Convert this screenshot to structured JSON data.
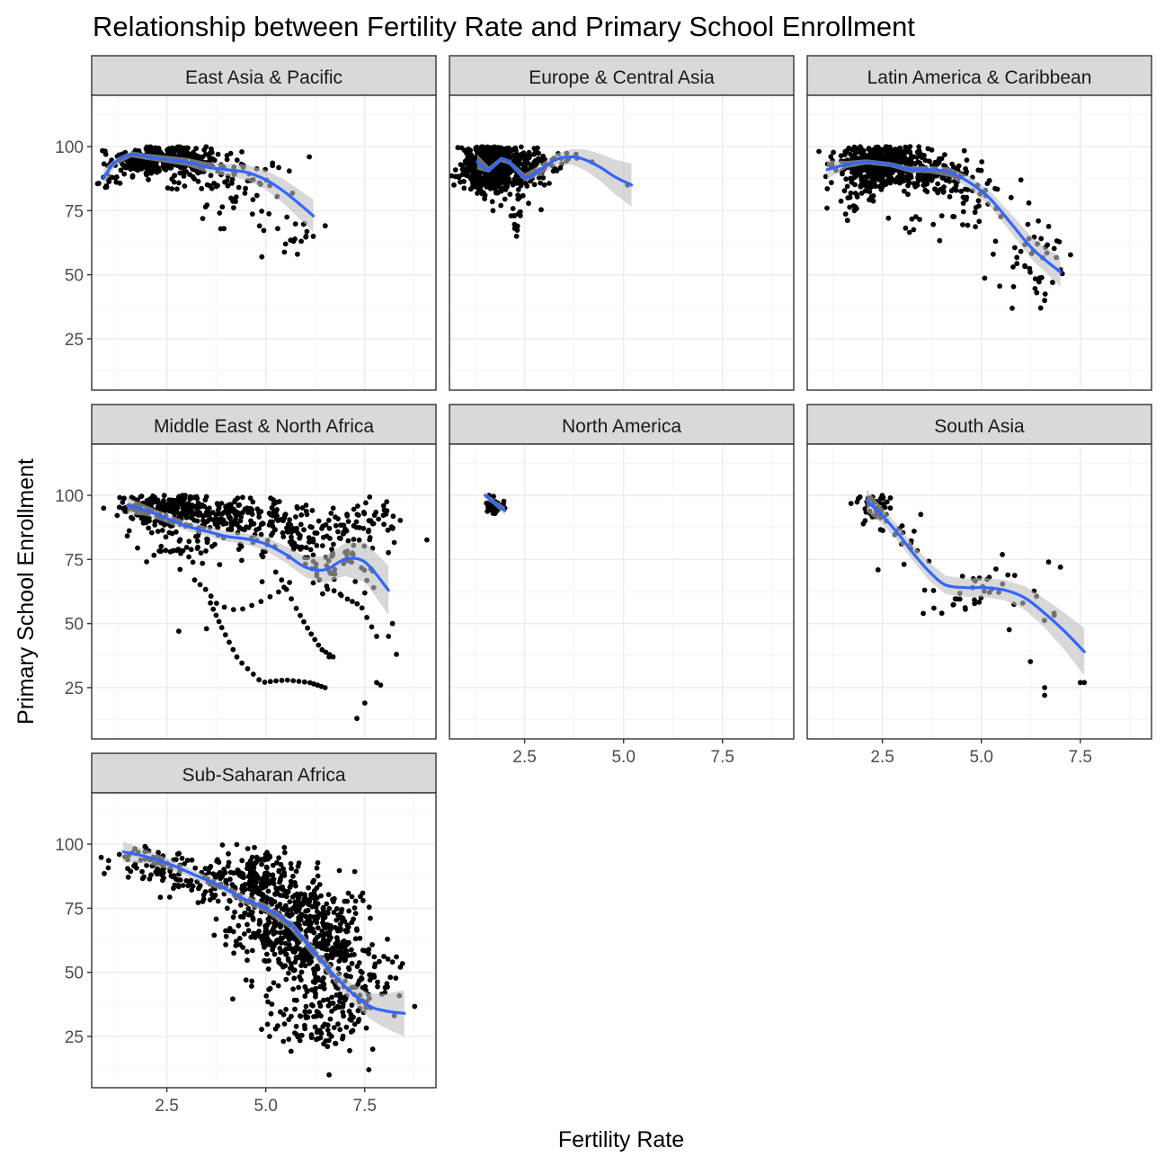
{
  "chart_data": {
    "type": "scatter",
    "title": "Relationship between Fertility Rate and Primary School Enrollment",
    "xlabel": "Fertility Rate",
    "ylabel": "Primary School Enrollment",
    "xlim": [
      0.6,
      9.3
    ],
    "ylim": [
      5,
      120
    ],
    "x_ticks": [
      2.5,
      5.0,
      7.5
    ],
    "y_ticks": [
      25,
      50,
      75,
      100
    ],
    "grid": true,
    "smoother": "loess",
    "colors": {
      "points": "#000000",
      "smooth_line": "#3366FF",
      "ribbon": "#BEBEBE",
      "strip_fill": "#D9D9D9",
      "panel_border": "#333333",
      "grid": "#EBEBEB"
    },
    "panels": [
      {
        "name": "East Asia & Pacific",
        "clusters": [
          {
            "cx": 2.2,
            "cy": 95,
            "sx": 0.55,
            "sy": 3,
            "n": 260,
            "ymax": 100
          },
          {
            "cx": 3.3,
            "cy": 92,
            "sx": 0.7,
            "sy": 4,
            "n": 110,
            "ymax": 100
          },
          {
            "cx": 1.0,
            "cy": 86,
            "sx": 0.15,
            "sy": 2,
            "n": 14,
            "ymax": 100
          },
          {
            "cx": 4.4,
            "cy": 80,
            "sx": 0.6,
            "sy": 8,
            "n": 40,
            "ymax": 100
          },
          {
            "cx": 5.4,
            "cy": 66,
            "sx": 0.45,
            "sy": 4,
            "n": 12,
            "ymax": 100
          }
        ],
        "extra_points": [
          [
            4.9,
            57
          ],
          [
            5.8,
            58
          ],
          [
            6.2,
            65
          ],
          [
            6.1,
            96
          ],
          [
            5.5,
            62
          ],
          [
            5.3,
            68
          ]
        ],
        "smooth": [
          [
            0.9,
            88
          ],
          [
            1.2,
            94
          ],
          [
            1.6,
            97
          ],
          [
            2.0,
            96
          ],
          [
            2.5,
            95
          ],
          [
            3.0,
            94
          ],
          [
            3.5,
            92
          ],
          [
            4.0,
            91
          ],
          [
            4.5,
            90
          ],
          [
            5.0,
            87
          ],
          [
            5.5,
            82
          ],
          [
            6.2,
            73
          ]
        ],
        "ribbon": [
          1.6,
          0.7,
          0.6,
          0.6,
          0.7,
          0.8,
          1.0,
          1.2,
          1.5,
          1.9,
          2.4,
          3.2
        ]
      },
      {
        "name": "Europe & Central Asia",
        "clusters": [
          {
            "cx": 1.6,
            "cy": 92,
            "sx": 0.3,
            "sy": 4.5,
            "n": 620,
            "ymax": 100
          },
          {
            "cx": 2.4,
            "cy": 92,
            "sx": 0.3,
            "sy": 5,
            "n": 140,
            "ymax": 100
          },
          {
            "cx": 2.3,
            "cy": 72,
            "sx": 0.08,
            "sy": 3,
            "n": 14,
            "ymax": 100
          },
          {
            "cx": 3.2,
            "cy": 94,
            "sx": 0.35,
            "sy": 2,
            "n": 30,
            "ymax": 100
          }
        ],
        "extra_points": [
          [
            5.1,
            85
          ],
          [
            3.8,
            97
          ],
          [
            4.2,
            94
          ],
          [
            1.7,
            75
          ],
          [
            1.9,
            77
          ]
        ],
        "smooth": [
          [
            1.3,
            94
          ],
          [
            1.6,
            91
          ],
          [
            1.9,
            95
          ],
          [
            2.1,
            94
          ],
          [
            2.5,
            88
          ],
          [
            2.8,
            90
          ],
          [
            3.3,
            95
          ],
          [
            3.7,
            96
          ],
          [
            4.0,
            95
          ],
          [
            4.4,
            92
          ],
          [
            4.8,
            88
          ],
          [
            5.2,
            85
          ]
        ],
        "ribbon": [
          1.5,
          0.6,
          0.5,
          0.5,
          0.8,
          1.0,
          1.2,
          1.5,
          2.0,
          2.6,
          3.4,
          4.2
        ]
      },
      {
        "name": "Latin America & Caribbean",
        "clusters": [
          {
            "cx": 2.4,
            "cy": 93,
            "sx": 0.5,
            "sy": 4,
            "n": 480,
            "ymax": 100
          },
          {
            "cx": 3.7,
            "cy": 90,
            "sx": 0.55,
            "sy": 4,
            "n": 140,
            "ymax": 100
          },
          {
            "cx": 1.8,
            "cy": 82,
            "sx": 0.3,
            "sy": 4,
            "n": 30,
            "ymax": 100
          },
          {
            "cx": 4.7,
            "cy": 80,
            "sx": 0.5,
            "sy": 7,
            "n": 40,
            "ymax": 100
          },
          {
            "cx": 6.2,
            "cy": 58,
            "sx": 0.4,
            "sy": 7,
            "n": 40,
            "ymax": 100
          },
          {
            "cx": 3.5,
            "cy": 69,
            "sx": 0.35,
            "sy": 2,
            "n": 8,
            "ymax": 100
          }
        ],
        "extra_points": [
          [
            1.1,
            76
          ],
          [
            6.4,
            43
          ],
          [
            6.5,
            37
          ],
          [
            6.6,
            40
          ],
          [
            6.8,
            47
          ],
          [
            7.0,
            52
          ],
          [
            6.2,
            78
          ],
          [
            6.0,
            87
          ],
          [
            5.3,
            58
          ],
          [
            4.0,
            73
          ]
        ],
        "smooth": [
          [
            1.1,
            91
          ],
          [
            1.6,
            93
          ],
          [
            2.1,
            94
          ],
          [
            2.7,
            93
          ],
          [
            3.2,
            91
          ],
          [
            3.7,
            91
          ],
          [
            4.2,
            90
          ],
          [
            4.7,
            86
          ],
          [
            5.2,
            80
          ],
          [
            5.7,
            71
          ],
          [
            6.3,
            60
          ],
          [
            7.0,
            51
          ]
        ],
        "ribbon": [
          1.8,
          0.7,
          0.5,
          0.5,
          0.6,
          0.7,
          0.9,
          1.2,
          1.5,
          1.8,
          2.2,
          2.8
        ]
      },
      {
        "name": "Middle East & North Africa",
        "clusters": [
          {
            "cx": 2.3,
            "cy": 95,
            "sx": 0.5,
            "sy": 3,
            "n": 170,
            "ymax": 100
          },
          {
            "cx": 3.8,
            "cy": 92,
            "sx": 0.8,
            "sy": 4,
            "n": 170,
            "ymax": 100
          },
          {
            "cx": 5.6,
            "cy": 85,
            "sx": 0.8,
            "sy": 6,
            "n": 120,
            "ymax": 100
          },
          {
            "cx": 7.6,
            "cy": 90,
            "sx": 0.45,
            "sy": 4,
            "n": 45,
            "ymax": 100
          },
          {
            "cx": 3.0,
            "cy": 80,
            "sx": 0.6,
            "sy": 6,
            "n": 50,
            "ymax": 100
          },
          {
            "cx": 6.8,
            "cy": 75,
            "sx": 0.6,
            "sy": 6,
            "n": 50,
            "ymax": 100
          }
        ],
        "extra_points": [
          [
            2.8,
            47
          ],
          [
            3.5,
            48
          ],
          [
            7.3,
            13
          ],
          [
            7.5,
            19
          ],
          [
            7.9,
            26
          ],
          [
            7.8,
            27
          ],
          [
            8.1,
            45
          ],
          [
            8.2,
            50
          ],
          [
            8.3,
            38
          ],
          [
            6.6,
            37
          ]
        ],
        "curves": [
          {
            "pts": [
              [
                3.2,
                67
              ],
              [
                3.5,
                63
              ],
              [
                3.8,
                57
              ],
              [
                4.3,
                55
              ],
              [
                4.8,
                58
              ],
              [
                5.3,
                62
              ],
              [
                5.6,
                66
              ]
            ],
            "n": 14
          },
          {
            "pts": [
              [
                3.6,
                58
              ],
              [
                3.9,
                48
              ],
              [
                4.3,
                36
              ],
              [
                4.9,
                27
              ],
              [
                5.5,
                28
              ],
              [
                6.1,
                27
              ],
              [
                6.5,
                25
              ]
            ],
            "n": 26
          },
          {
            "pts": [
              [
                5.4,
                67
              ],
              [
                5.8,
                55
              ],
              [
                6.1,
                47
              ],
              [
                6.4,
                40
              ],
              [
                6.7,
                37
              ]
            ],
            "n": 14
          },
          {
            "pts": [
              [
                5.8,
                80
              ],
              [
                6.4,
                66
              ],
              [
                7.0,
                60
              ],
              [
                7.4,
                57
              ],
              [
                7.8,
                45
              ]
            ],
            "n": 14
          }
        ],
        "smooth": [
          [
            1.5,
            96
          ],
          [
            2.0,
            94
          ],
          [
            2.5,
            91
          ],
          [
            3.0,
            88
          ],
          [
            3.5,
            86
          ],
          [
            4.0,
            84
          ],
          [
            4.5,
            83
          ],
          [
            5.0,
            81
          ],
          [
            5.5,
            77
          ],
          [
            6.0,
            72
          ],
          [
            6.5,
            71
          ],
          [
            7.0,
            75
          ],
          [
            7.5,
            74
          ],
          [
            8.1,
            63
          ]
        ],
        "ribbon": [
          1.6,
          1.0,
          0.9,
          0.9,
          0.9,
          1.0,
          1.1,
          1.3,
          1.6,
          2.0,
          2.6,
          3.2,
          3.9,
          4.8
        ]
      },
      {
        "name": "North America",
        "clusters": [
          {
            "cx": 1.75,
            "cy": 96,
            "sx": 0.12,
            "sy": 1.5,
            "n": 40,
            "ymax": 100
          }
        ],
        "extra_points": [
          [
            1.6,
            100
          ],
          [
            1.8,
            94
          ],
          [
            2.0,
            95
          ],
          [
            1.7,
            93
          ]
        ],
        "smooth": [
          [
            1.5,
            100
          ],
          [
            1.7,
            97.5
          ],
          [
            2.0,
            94
          ]
        ],
        "ribbon": [
          0.7,
          0.5,
          0.8
        ]
      },
      {
        "name": "South Asia",
        "clusters": [
          {
            "cx": 2.3,
            "cy": 96,
            "sx": 0.25,
            "sy": 3,
            "n": 45,
            "ymax": 100
          },
          {
            "cx": 3.0,
            "cy": 82,
            "sx": 0.35,
            "sy": 6,
            "n": 14,
            "ymax": 100
          },
          {
            "cx": 4.5,
            "cy": 62,
            "sx": 0.7,
            "sy": 4,
            "n": 30,
            "ymax": 100
          },
          {
            "cx": 6.2,
            "cy": 58,
            "sx": 0.6,
            "sy": 8,
            "n": 10,
            "ymax": 100
          }
        ],
        "extra_points": [
          [
            6.6,
            22
          ],
          [
            6.6,
            25
          ],
          [
            7.6,
            27
          ],
          [
            7.5,
            27
          ],
          [
            6.7,
            74
          ],
          [
            7.0,
            72
          ],
          [
            5.2,
            68
          ],
          [
            3.3,
            86
          ],
          [
            3.8,
            56
          ],
          [
            4.0,
            54
          ]
        ],
        "smooth": [
          [
            2.1,
            98
          ],
          [
            2.5,
            92
          ],
          [
            2.9,
            85
          ],
          [
            3.3,
            77
          ],
          [
            3.7,
            70
          ],
          [
            4.1,
            65
          ],
          [
            4.6,
            64
          ],
          [
            5.1,
            64
          ],
          [
            5.6,
            63
          ],
          [
            6.1,
            60
          ],
          [
            6.6,
            54
          ],
          [
            7.1,
            47
          ],
          [
            7.6,
            39
          ]
        ],
        "ribbon": [
          2.2,
          1.6,
          1.5,
          1.6,
          1.8,
          1.8,
          1.8,
          1.9,
          2.0,
          2.3,
          2.8,
          3.6,
          4.6
        ]
      },
      {
        "name": "Sub-Saharan Africa",
        "clusters": [
          {
            "cx": 2.2,
            "cy": 93,
            "sx": 0.5,
            "sy": 3.5,
            "n": 70,
            "ymax": 100
          },
          {
            "cx": 3.4,
            "cy": 86,
            "sx": 0.6,
            "sy": 5,
            "n": 80,
            "ymax": 100
          },
          {
            "cx": 4.8,
            "cy": 87,
            "sx": 0.5,
            "sy": 6,
            "n": 140,
            "ymax": 100
          },
          {
            "cx": 5.5,
            "cy": 68,
            "sx": 0.7,
            "sy": 10,
            "n": 380,
            "ymax": 100
          },
          {
            "cx": 6.6,
            "cy": 55,
            "sx": 0.6,
            "sy": 13,
            "n": 260,
            "ymax": 100
          },
          {
            "cx": 6.2,
            "cy": 30,
            "sx": 0.6,
            "sy": 7,
            "n": 70,
            "ymax": 100
          },
          {
            "cx": 7.3,
            "cy": 45,
            "sx": 0.5,
            "sy": 10,
            "n": 60,
            "ymax": 100
          }
        ],
        "extra_points": [
          [
            1.3,
            96
          ],
          [
            8.3,
            56
          ],
          [
            8.4,
            52
          ],
          [
            8.2,
            54
          ],
          [
            7.6,
            12
          ],
          [
            6.6,
            10
          ],
          [
            7.7,
            20
          ],
          [
            4.5,
            47
          ],
          [
            4.0,
            64
          ]
        ],
        "smooth": [
          [
            1.4,
            97
          ],
          [
            2.0,
            95
          ],
          [
            2.6,
            92
          ],
          [
            3.2,
            88
          ],
          [
            3.8,
            84
          ],
          [
            4.4,
            79
          ],
          [
            5.0,
            75
          ],
          [
            5.6,
            69
          ],
          [
            6.1,
            60
          ],
          [
            6.6,
            51
          ],
          [
            7.1,
            43
          ],
          [
            7.6,
            37
          ],
          [
            8.0,
            35
          ],
          [
            8.5,
            34
          ]
        ],
        "ribbon": [
          2.0,
          1.3,
          1.0,
          0.9,
          0.9,
          0.9,
          0.9,
          1.0,
          1.1,
          1.3,
          1.7,
          2.4,
          3.3,
          4.5
        ]
      }
    ]
  }
}
